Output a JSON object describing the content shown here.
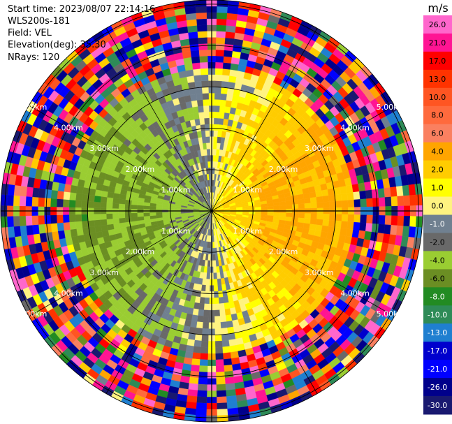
{
  "header": {
    "start_time": "Start time: 2023/08/07 22:14:16",
    "instrument": "WLS200s-181",
    "field": "Field: VEL",
    "elevation": "Elevation(deg): 35.30",
    "nrays": "NRays: 120"
  },
  "chart_data": {
    "type": "heatmap",
    "projection": "polar (PPI)",
    "n_rays": 120,
    "elevation_deg": 35.3,
    "field": "VEL",
    "range_rings_km": [
      1.0,
      2.0,
      3.0,
      4.0,
      5.0
    ],
    "range_ring_labels": [
      "1.00km",
      "2.00km",
      "3.00km",
      "4.00km",
      "5.00km"
    ],
    "max_range_km": 5.1,
    "colorbar": {
      "unit": "m/s",
      "ticks": [
        "26.0",
        "21.0",
        "17.0",
        "13.0",
        "10.0",
        "8.0",
        "6.0",
        "4.0",
        "2.0",
        "1.0",
        "0.0",
        "-1.0",
        "-2.0",
        "-4.0",
        "-6.0",
        "-8.0",
        "-10.0",
        "-13.0",
        "-17.0",
        "-21.0",
        "-26.0",
        "-30.0"
      ],
      "bins": [
        {
          "from": 26,
          "to": 30,
          "color": "#ff66cc"
        },
        {
          "from": 21,
          "to": 26,
          "color": "#ff1493"
        },
        {
          "from": 17,
          "to": 21,
          "color": "#ff0000"
        },
        {
          "from": 13,
          "to": 17,
          "color": "#ff3300"
        },
        {
          "from": 10,
          "to": 13,
          "color": "#ff5522"
        },
        {
          "from": 8,
          "to": 10,
          "color": "#ff6a3d"
        },
        {
          "from": 6,
          "to": 8,
          "color": "#fa8060"
        },
        {
          "from": 4,
          "to": 6,
          "color": "#ffa500"
        },
        {
          "from": 2,
          "to": 4,
          "color": "#ffcc00"
        },
        {
          "from": 1,
          "to": 2,
          "color": "#ffff00"
        },
        {
          "from": 0,
          "to": 1,
          "color": "#fff380"
        },
        {
          "from": -1,
          "to": 0,
          "color": "#708090"
        },
        {
          "from": -2,
          "to": -1,
          "color": "#696969"
        },
        {
          "from": -4,
          "to": -2,
          "color": "#9acd32"
        },
        {
          "from": -6,
          "to": -4,
          "color": "#6b8e23"
        },
        {
          "from": -8,
          "to": -6,
          "color": "#228b22"
        },
        {
          "from": -10,
          "to": -8,
          "color": "#2e8b57"
        },
        {
          "from": -13,
          "to": -10,
          "color": "#1f7fd0"
        },
        {
          "from": -17,
          "to": -13,
          "color": "#0000cd"
        },
        {
          "from": -21,
          "to": -17,
          "color": "#0000ff"
        },
        {
          "from": -26,
          "to": -21,
          "color": "#00008b"
        },
        {
          "from": -30,
          "to": -26,
          "color": "#191970"
        }
      ]
    }
  }
}
